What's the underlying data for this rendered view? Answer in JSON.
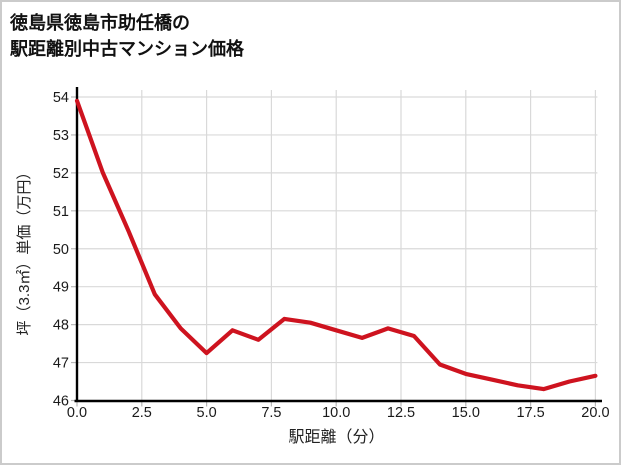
{
  "title": {
    "line1": "徳島県徳島市助任橋の",
    "line2": "駅距離別中古マンション価格"
  },
  "chart_data": {
    "type": "line",
    "title": "徳島県徳島市助任橋の駅距離別中古マンション価格",
    "xlabel": "駅距離（分）",
    "ylabel": "坪（3.3㎡）単価（万円）",
    "x": [
      0,
      1,
      2,
      3,
      4,
      5,
      6,
      7,
      8,
      9,
      10,
      11,
      12,
      13,
      14,
      15,
      16,
      17,
      18,
      19,
      20
    ],
    "values": [
      53.9,
      52.0,
      50.45,
      48.8,
      47.9,
      47.25,
      47.85,
      47.6,
      48.15,
      48.05,
      47.85,
      47.65,
      47.9,
      47.7,
      46.95,
      46.7,
      46.55,
      46.4,
      46.3,
      46.5,
      46.65
    ],
    "xlim": [
      0,
      20
    ],
    "ylim": [
      46,
      54
    ],
    "x_tick_labels": [
      "0.0",
      "2.5",
      "5.0",
      "7.5",
      "10.0",
      "12.5",
      "15.0",
      "17.5",
      "20.0"
    ],
    "x_tick_values": [
      0,
      2.5,
      5,
      7.5,
      10,
      12.5,
      15,
      17.5,
      20
    ],
    "y_tick_labels": [
      "46",
      "47",
      "48",
      "49",
      "50",
      "51",
      "52",
      "53",
      "54"
    ],
    "y_tick_values": [
      46,
      47,
      48,
      49,
      50,
      51,
      52,
      53,
      54
    ],
    "grid": true,
    "legend": "none",
    "line_color": "#ce131f",
    "grid_color": "#d9d9d9",
    "axis_color": "#000000",
    "tick_color": "#b8b8b8",
    "tick_label_color": "#1a1a1a"
  }
}
